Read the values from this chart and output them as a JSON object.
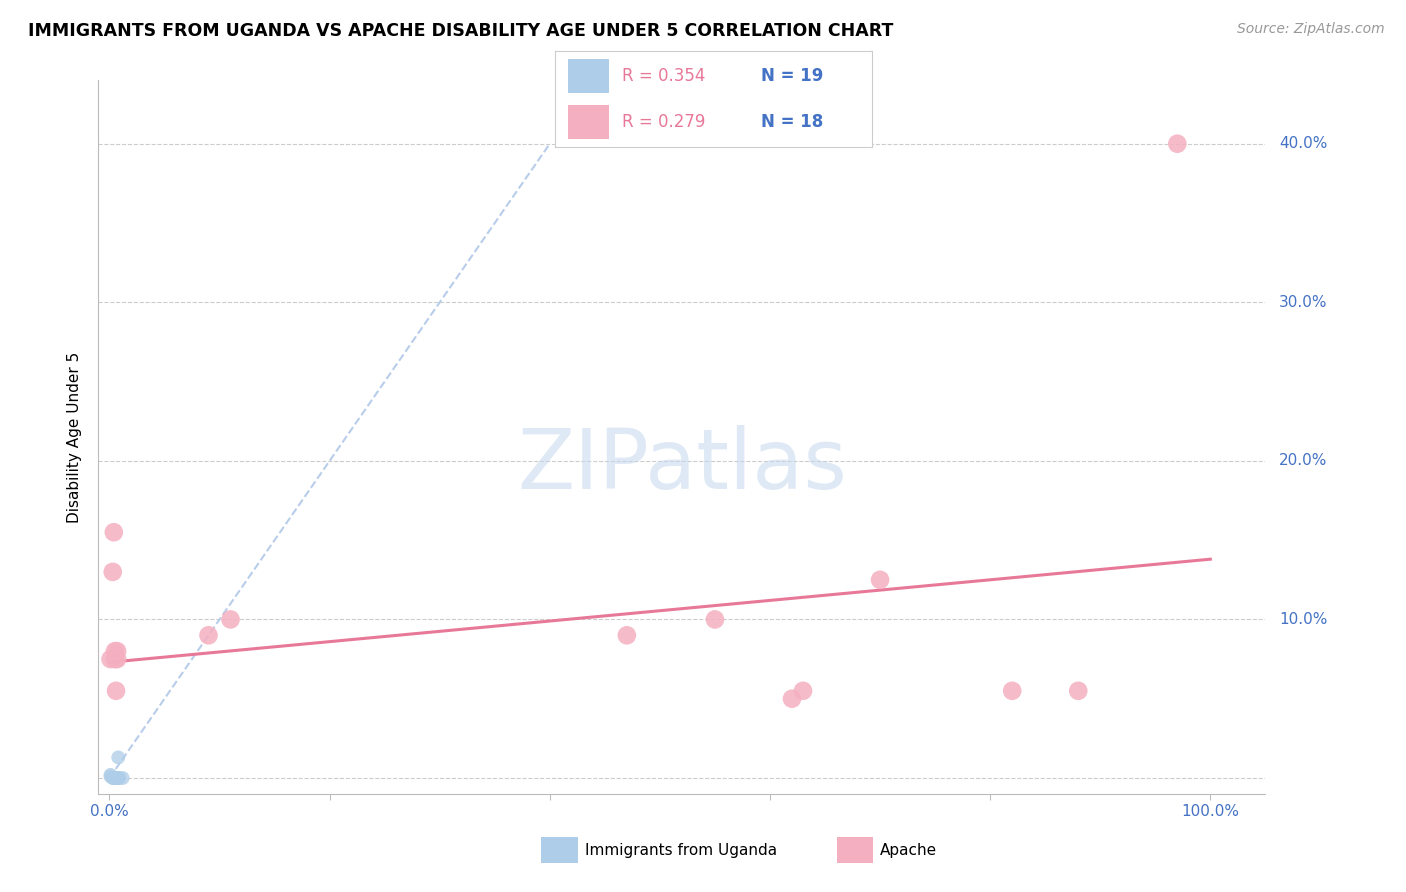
{
  "title": "IMMIGRANTS FROM UGANDA VS APACHE DISABILITY AGE UNDER 5 CORRELATION CHART",
  "source_text": "Source: ZipAtlas.com",
  "ylabel": "Disability Age Under 5",
  "xlim": [
    -0.01,
    1.05
  ],
  "ylim": [
    -0.01,
    0.44
  ],
  "xtick_positions": [
    0.0,
    0.2,
    0.4,
    0.6,
    0.8,
    1.0
  ],
  "xtick_labels": [
    "0.0%",
    "",
    "",
    "",
    "",
    "100.0%"
  ],
  "ytick_positions": [
    0.0,
    0.1,
    0.2,
    0.3,
    0.4
  ],
  "ytick_labels": [
    "",
    "10.0%",
    "20.0%",
    "30.0%",
    "40.0%"
  ],
  "legend_r1": "R = 0.354",
  "legend_n1": "N = 19",
  "legend_r2": "R = 0.279",
  "legend_n2": "N = 18",
  "blue_color": "#aecde8",
  "pink_color": "#f4b0c0",
  "blue_line_color": "#b0c8e8",
  "pink_line_color": "#e87898",
  "label_color": "#4472c4",
  "grid_color": "#cccccc",
  "blue_scatter_x": [
    0.001,
    0.001,
    0.003,
    0.004,
    0.004,
    0.005,
    0.005,
    0.006,
    0.006,
    0.006,
    0.007,
    0.007,
    0.007,
    0.007,
    0.007,
    0.008,
    0.008,
    0.009,
    0.012
  ],
  "blue_scatter_y": [
    0.001,
    0.002,
    0.0,
    0.0,
    0.0,
    0.0,
    0.0,
    0.0,
    0.0,
    0.0,
    0.0,
    0.0,
    0.0,
    0.0,
    0.0,
    0.0,
    0.013,
    0.0,
    0.0
  ],
  "pink_scatter_x": [
    0.001,
    0.003,
    0.004,
    0.005,
    0.005,
    0.006,
    0.007,
    0.007,
    0.09,
    0.11,
    0.47,
    0.55,
    0.62,
    0.63,
    0.7,
    0.82,
    0.88,
    0.97
  ],
  "pink_scatter_y": [
    0.075,
    0.13,
    0.155,
    0.075,
    0.08,
    0.055,
    0.075,
    0.08,
    0.09,
    0.1,
    0.09,
    0.1,
    0.05,
    0.055,
    0.125,
    0.055,
    0.055,
    0.4
  ],
  "blue_trend_x": [
    0.0,
    0.4
  ],
  "blue_trend_y": [
    0.0,
    0.4
  ],
  "pink_trend_x": [
    0.0,
    1.0
  ],
  "pink_trend_y": [
    0.073,
    0.138
  ]
}
